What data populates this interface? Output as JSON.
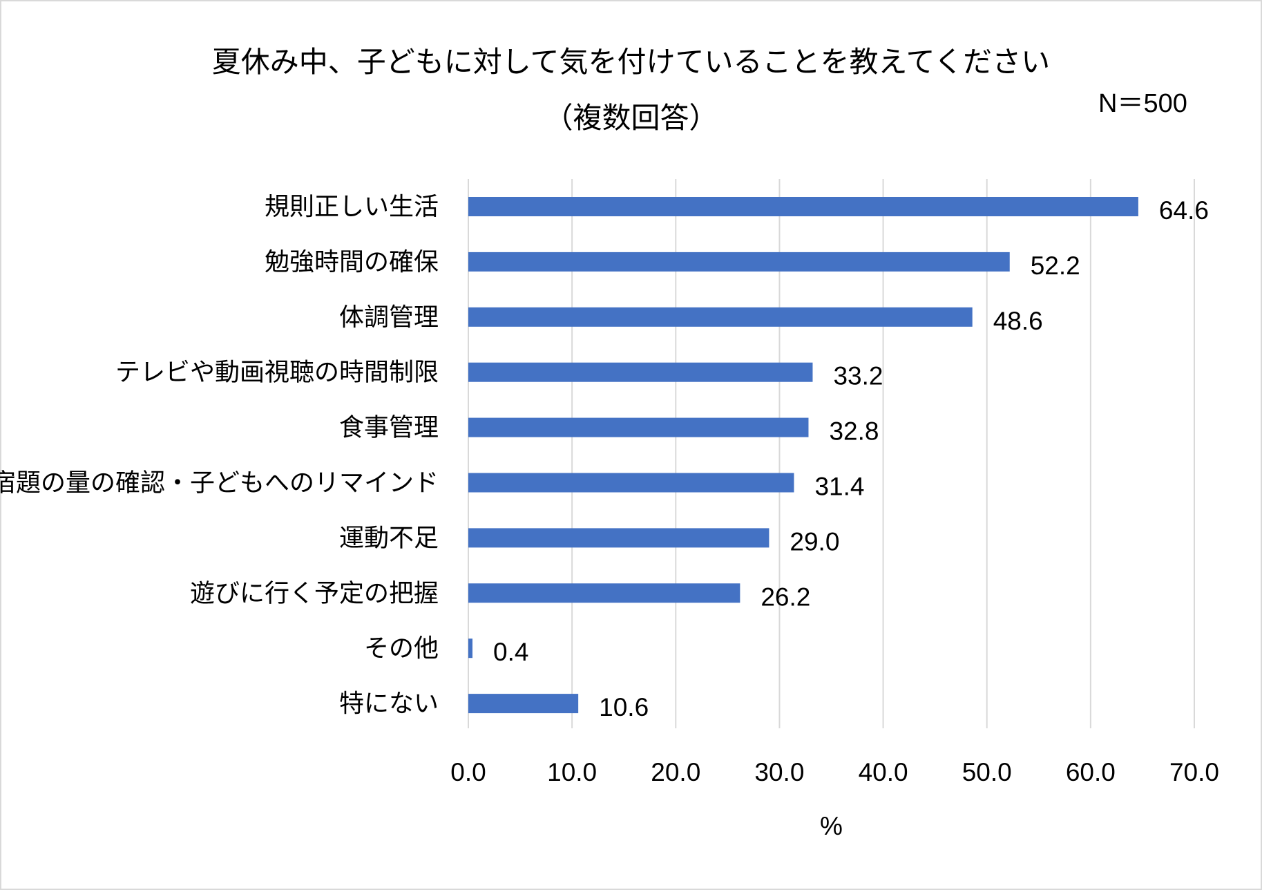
{
  "chart_data": {
    "type": "bar",
    "orientation": "horizontal",
    "title": "夏休み中、子どもに対して気を付けていることを教えてください",
    "subtitle": "（複数回答）",
    "annotation": "N＝500",
    "categories": [
      "規則正しい生活",
      "勉強時間の確保",
      "体調管理",
      "テレビや動画視聴の時間制限",
      "食事管理",
      "宿題の量の確認・子どもへのリマインド",
      "運動不足",
      "遊びに行く予定の把握",
      "その他",
      "特にない"
    ],
    "values": [
      64.6,
      52.2,
      48.6,
      33.2,
      32.8,
      31.4,
      29.0,
      26.2,
      0.4,
      10.6
    ],
    "value_labels": [
      "64.6",
      "52.2",
      "48.6",
      "33.2",
      "32.8",
      "31.4",
      "29.0",
      "26.2",
      "0.4",
      "10.6"
    ],
    "xlabel": "%",
    "xlim": [
      0,
      70
    ],
    "xticks": [
      "0.0",
      "10.0",
      "20.0",
      "30.0",
      "40.0",
      "50.0",
      "60.0",
      "70.0"
    ],
    "grid": "vertical",
    "colors": {
      "bar": "#4472C4",
      "grid": "#d9d9d9",
      "border": "#d9d9d9"
    }
  }
}
